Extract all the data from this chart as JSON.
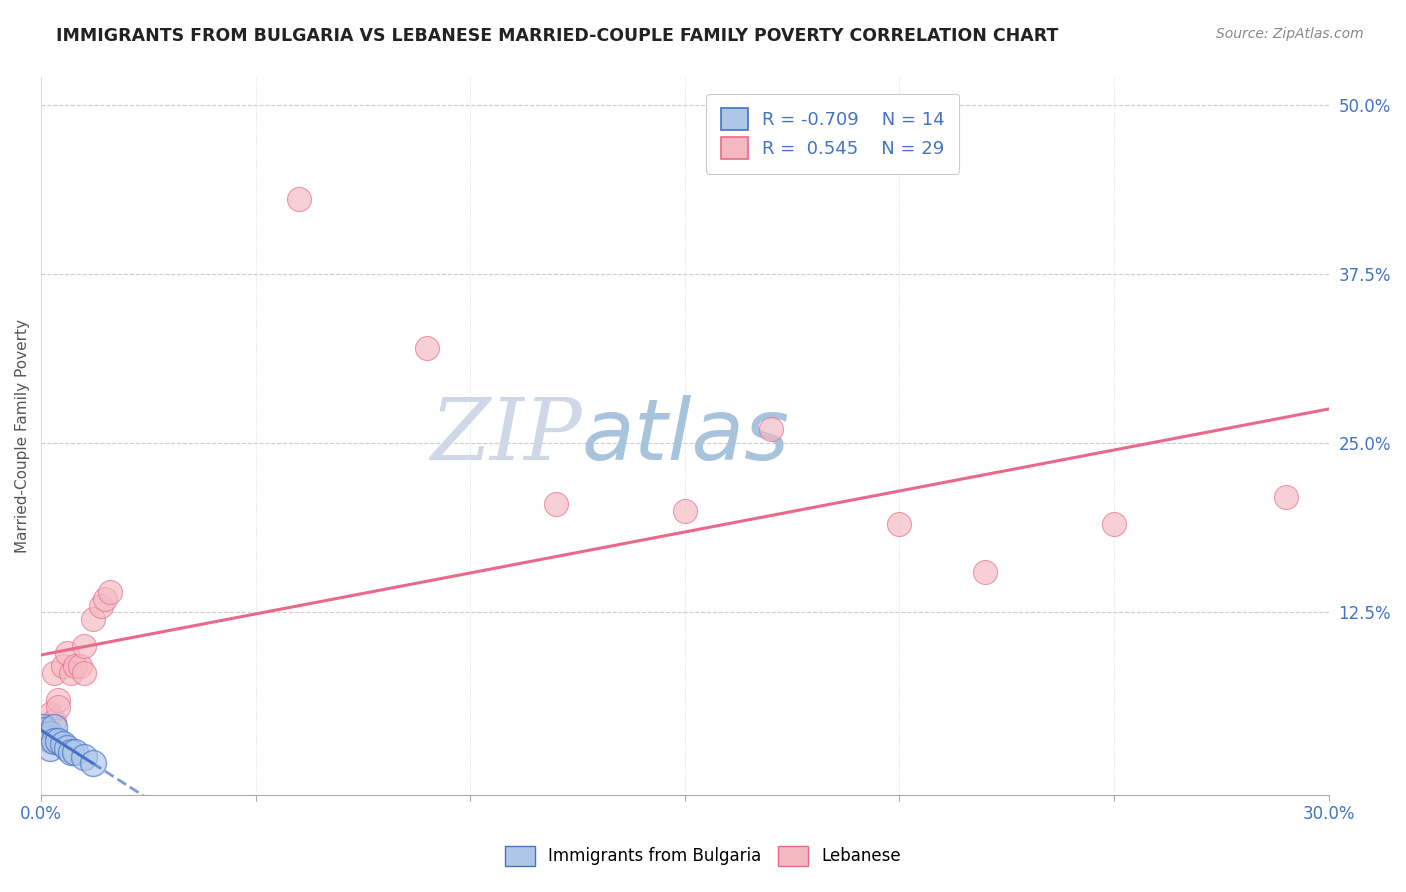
{
  "title": "IMMIGRANTS FROM BULGARIA VS LEBANESE MARRIED-COUPLE FAMILY POVERTY CORRELATION CHART",
  "source_text": "Source: ZipAtlas.com",
  "ylabel": "Married-Couple Family Poverty",
  "xlim": [
    0.0,
    0.3
  ],
  "ylim": [
    -0.01,
    0.52
  ],
  "xtick_positions": [
    0.0,
    0.05,
    0.1,
    0.15,
    0.2,
    0.25,
    0.3
  ],
  "ytick_right_positions": [
    0.0,
    0.125,
    0.25,
    0.375,
    0.5
  ],
  "ytick_right_labels": [
    "",
    "12.5%",
    "25.0%",
    "37.5%",
    "50.0%"
  ],
  "legend_r1": "R = -0.709",
  "legend_n1": "N = 14",
  "legend_r2": "R =  0.545",
  "legend_n2": "N = 29",
  "bulgaria_color": "#aec6e8",
  "lebanon_color": "#f4b8c1",
  "bulgaria_line_color": "#4472c4",
  "lebanon_line_color": "#e8698a",
  "watermark_zip": "ZIP",
  "watermark_atlas": "atlas",
  "watermark_color_zip": "#d0d8e8",
  "watermark_color_atlas": "#a8c4dc",
  "grid_color": "#cccccc",
  "title_color": "#222222",
  "source_color": "#888888",
  "tick_color": "#4472c4",
  "ylabel_color": "#555555",
  "bulgaria_x": [
    0.0005,
    0.001,
    0.0015,
    0.002,
    0.002,
    0.003,
    0.003,
    0.004,
    0.005,
    0.006,
    0.007,
    0.008,
    0.01,
    0.012
  ],
  "bulgaria_y": [
    0.04,
    0.038,
    0.032,
    0.035,
    0.025,
    0.04,
    0.03,
    0.03,
    0.028,
    0.025,
    0.022,
    0.022,
    0.018,
    0.014
  ],
  "lebanon_x": [
    0.0005,
    0.001,
    0.001,
    0.002,
    0.002,
    0.003,
    0.003,
    0.004,
    0.004,
    0.005,
    0.006,
    0.007,
    0.008,
    0.009,
    0.01,
    0.01,
    0.012,
    0.014,
    0.015,
    0.016,
    0.06,
    0.09,
    0.12,
    0.15,
    0.17,
    0.2,
    0.22,
    0.25,
    0.29
  ],
  "lebanon_y": [
    0.04,
    0.04,
    0.035,
    0.05,
    0.03,
    0.045,
    0.08,
    0.06,
    0.055,
    0.085,
    0.095,
    0.08,
    0.085,
    0.085,
    0.08,
    0.1,
    0.12,
    0.13,
    0.135,
    0.14,
    0.43,
    0.32,
    0.205,
    0.2,
    0.26,
    0.19,
    0.155,
    0.19,
    0.21
  ]
}
